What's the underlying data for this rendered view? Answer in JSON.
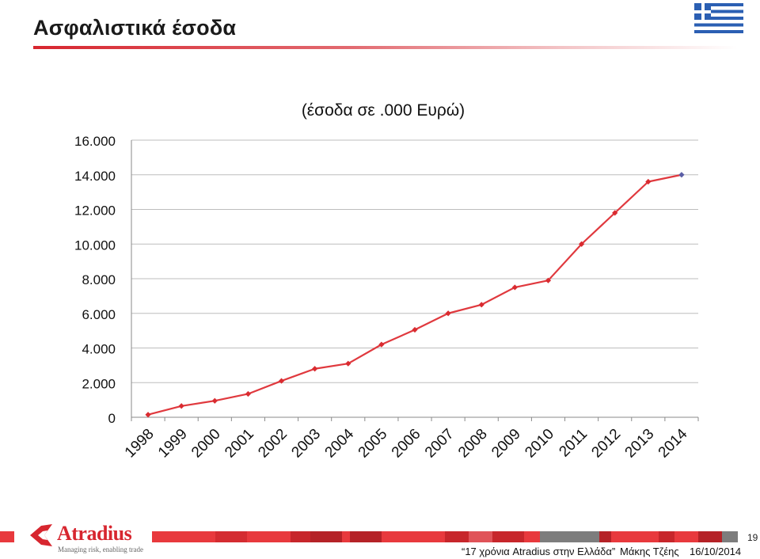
{
  "slide": {
    "title": "Ασφαλιστικά έσοδα",
    "page_number": "19"
  },
  "footer": {
    "event": "“17 χρόνια Atradius στην Ελλάδα”",
    "presenter": "Μάκης Τζέης",
    "date": "16/10/2014"
  },
  "logo": {
    "name": "Atradius",
    "tagline": "Managing risk, enabling trade"
  },
  "flag": {
    "icon": "greek-flag-icon"
  },
  "colors": {
    "accent_red": "#d7262f",
    "series_line": "#e0393e",
    "series_marker": "#d92b30",
    "last_marker": "#5b5ea6",
    "gridline": "#bdbdbd"
  },
  "chart_data": {
    "type": "line",
    "title": "(έσοδα σε .000 Ευρώ)",
    "xlabel": "",
    "ylabel": "",
    "categories": [
      "1998",
      "1999",
      "2000",
      "2001",
      "2002",
      "2003",
      "2004",
      "2005",
      "2006",
      "2007",
      "2008",
      "2009",
      "2010",
      "2011",
      "2012",
      "2013",
      "2014"
    ],
    "series": [
      {
        "values": [
          150,
          650,
          950,
          1350,
          2100,
          2800,
          3100,
          4200,
          5050,
          6000,
          6500,
          7500,
          7900,
          10000,
          11800,
          13600,
          14000
        ]
      }
    ],
    "y_ticks": [
      0,
      2000,
      4000,
      6000,
      8000,
      10000,
      12000,
      14000,
      16000
    ],
    "y_tick_labels": [
      "0",
      "2.000",
      "4.000",
      "6.000",
      "8.000",
      "10.000",
      "12.000",
      "14.000",
      "16.000"
    ],
    "ylim": [
      0,
      16000
    ],
    "grid": true,
    "legend": "none"
  }
}
